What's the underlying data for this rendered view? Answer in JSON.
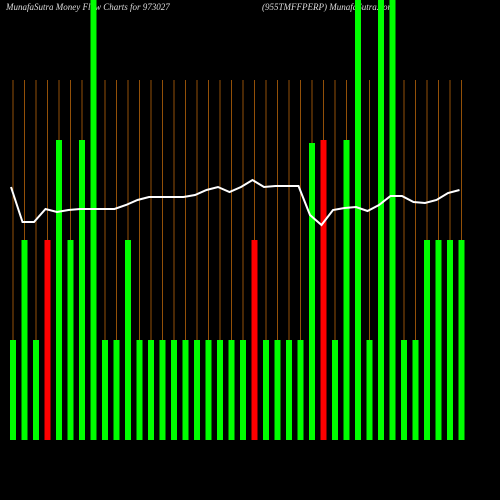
{
  "chart_data": {
    "type": "bar",
    "title": "MunafaSutra  Money Flow  Charts for 973027",
    "subtitle": "(955TMFFPERP) MunafaSutra.com",
    "categories": [
      null,
      null,
      null,
      null,
      null,
      null,
      null,
      null,
      null,
      null,
      null,
      null,
      null,
      null,
      null,
      null,
      null,
      null,
      null,
      null,
      null,
      null,
      null,
      null,
      null,
      null,
      null,
      null,
      null,
      null,
      null,
      null,
      null,
      null,
      null,
      null,
      null,
      null,
      null,
      null
    ],
    "values": [
      1,
      2,
      1,
      2,
      3,
      2,
      3,
      4.4,
      1,
      1,
      2,
      1,
      1,
      1,
      1,
      1,
      1,
      1,
      1,
      1,
      1,
      2,
      1,
      1,
      1,
      1,
      2.97,
      3,
      1,
      3,
      4.4,
      1,
      4.4,
      4.4,
      1,
      1,
      2,
      2,
      2,
      2
    ],
    "colors": [
      "#00ff00",
      "#00ff00",
      "#00ff00",
      "#ff0000",
      "#00ff00",
      "#00ff00",
      "#00ff00",
      "#00ff00",
      "#00ff00",
      "#00ff00",
      "#00ff00",
      "#00ff00",
      "#00ff00",
      "#00ff00",
      "#00ff00",
      "#00ff00",
      "#00ff00",
      "#00ff00",
      "#00ff00",
      "#00ff00",
      "#00ff00",
      "#ff0000",
      "#00ff00",
      "#00ff00",
      "#00ff00",
      "#00ff00",
      "#00ff00",
      "#ff0000",
      "#00ff00",
      "#00ff00",
      "#00ff00",
      "#00ff00",
      "#00ff00",
      "#00ff00",
      "#00ff00",
      "#00ff00",
      "#00ff00",
      "#00ff00",
      "#00ff00",
      "#00ff00"
    ],
    "line": {
      "color": "#ffffff",
      "values": [
        2.53,
        2.18,
        2.18,
        2.31,
        2.28,
        2.3,
        2.31,
        2.31,
        2.31,
        2.31,
        2.35,
        2.4,
        2.43,
        2.43,
        2.43,
        2.43,
        2.45,
        2.5,
        2.53,
        2.48,
        2.53,
        2.6,
        2.53,
        2.54,
        2.54,
        2.54,
        2.25,
        2.15,
        2.3,
        2.32,
        2.33,
        2.29,
        2.35,
        2.44,
        2.44,
        2.38,
        2.37,
        2.4,
        2.47,
        2.5
      ]
    },
    "ylim": [
      0,
      4.4
    ],
    "grid_color": "#b8650a"
  }
}
